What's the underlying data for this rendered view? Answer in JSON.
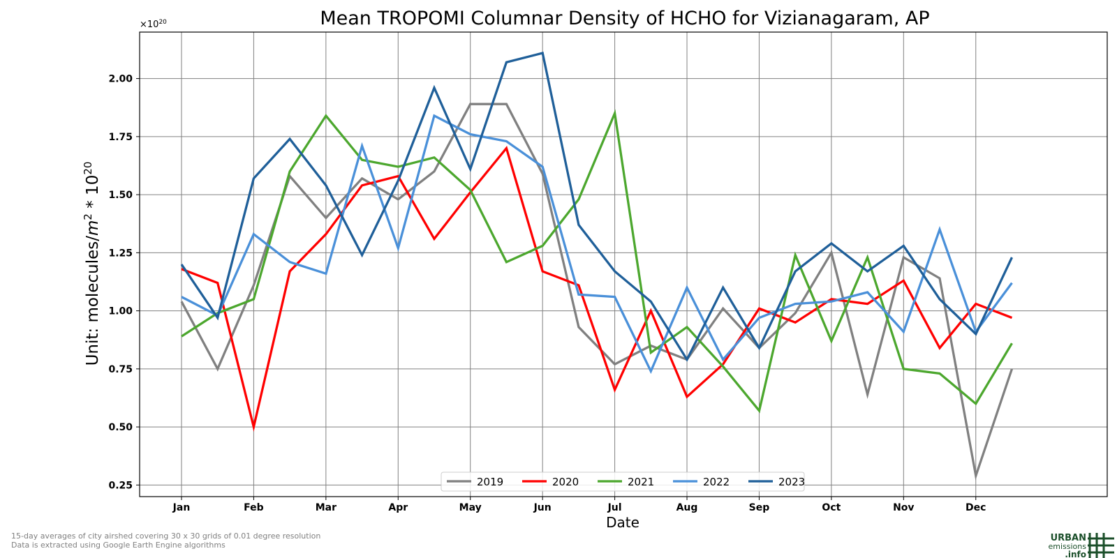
{
  "chart_data": {
    "type": "line",
    "title": "Mean TROPOMI Columnar Density of HCHO for Vizianagaram, AP",
    "xlabel": "Date",
    "ylabel": "Unit: molecules/m² * 10²⁰",
    "ylabel_main": "Unit: molecules/",
    "ylabel_m": "m",
    "ylabel_m_exp": "2",
    "ylabel_mult": " * 10",
    "ylabel_mult_exp": "20",
    "offset_base": "×10",
    "offset_exp": "20",
    "x_ticks": [
      "Jan",
      "Feb",
      "Mar",
      "Apr",
      "May",
      "Jun",
      "Jul",
      "Aug",
      "Sep",
      "Oct",
      "Nov",
      "Dec"
    ],
    "y_ticks": [
      "0.25",
      "0.50",
      "0.75",
      "1.00",
      "1.25",
      "1.50",
      "1.75",
      "2.00"
    ],
    "y_tick_values": [
      0.25,
      0.5,
      0.75,
      1.0,
      1.25,
      1.5,
      1.75,
      2.0
    ],
    "xlim": [
      0.42,
      13.82
    ],
    "ylim": [
      0.2,
      2.2
    ],
    "grid": true,
    "legend_position": "lower center",
    "x": [
      1,
      1.5,
      2,
      2.5,
      3,
      3.5,
      4,
      4.5,
      5,
      5.5,
      6,
      6.5,
      7,
      7.5,
      8,
      8.5,
      9,
      9.5,
      10,
      10.5,
      11,
      11.5,
      12,
      12.5
    ],
    "series": [
      {
        "name": "2019",
        "color": "#808080",
        "values": [
          1.04,
          0.75,
          1.11,
          1.58,
          1.4,
          1.57,
          1.48,
          1.6,
          1.89,
          1.89,
          1.59,
          0.93,
          0.77,
          0.85,
          0.79,
          1.01,
          0.84,
          0.99,
          1.25,
          0.64,
          1.23,
          1.14,
          0.29,
          0.75
        ]
      },
      {
        "name": "2020",
        "color": "#ff0000",
        "values": [
          1.18,
          1.12,
          0.5,
          1.17,
          1.33,
          1.54,
          1.58,
          1.31,
          1.51,
          1.7,
          1.17,
          1.11,
          0.66,
          1.0,
          0.63,
          0.77,
          1.01,
          0.95,
          1.05,
          1.03,
          1.13,
          0.84,
          1.03,
          0.97
        ]
      },
      {
        "name": "2021",
        "color": "#4ca72e",
        "values": [
          0.89,
          0.99,
          1.05,
          1.6,
          1.84,
          1.65,
          1.62,
          1.66,
          1.52,
          1.21,
          1.28,
          1.48,
          1.85,
          0.82,
          0.93,
          0.76,
          0.57,
          1.24,
          0.87,
          1.23,
          0.75,
          0.73,
          0.6,
          0.86
        ]
      },
      {
        "name": "2022",
        "color": "#4a90d9",
        "values": [
          1.06,
          0.98,
          1.33,
          1.21,
          1.16,
          1.71,
          1.27,
          1.84,
          1.76,
          1.73,
          1.62,
          1.07,
          1.06,
          0.74,
          1.1,
          0.79,
          0.97,
          1.03,
          1.04,
          1.08,
          0.91,
          1.35,
          0.91,
          1.12
        ]
      },
      {
        "name": "2023",
        "color": "#1f5f99",
        "values": [
          1.2,
          0.97,
          1.57,
          1.74,
          1.54,
          1.24,
          1.56,
          1.96,
          1.61,
          2.07,
          2.11,
          1.37,
          1.17,
          1.04,
          0.79,
          1.1,
          0.84,
          1.17,
          1.29,
          1.17,
          1.28,
          1.05,
          0.9,
          1.23
        ]
      }
    ]
  },
  "footnote": {
    "line1": "15-day averages of city airshed covering 30 x 30 grids of 0.01 degree resolution",
    "line2": "Data is extracted using Google Earth Engine algorithms"
  },
  "logo": {
    "top": "URBAN",
    "mid": "emissions",
    "bot": ".info"
  }
}
